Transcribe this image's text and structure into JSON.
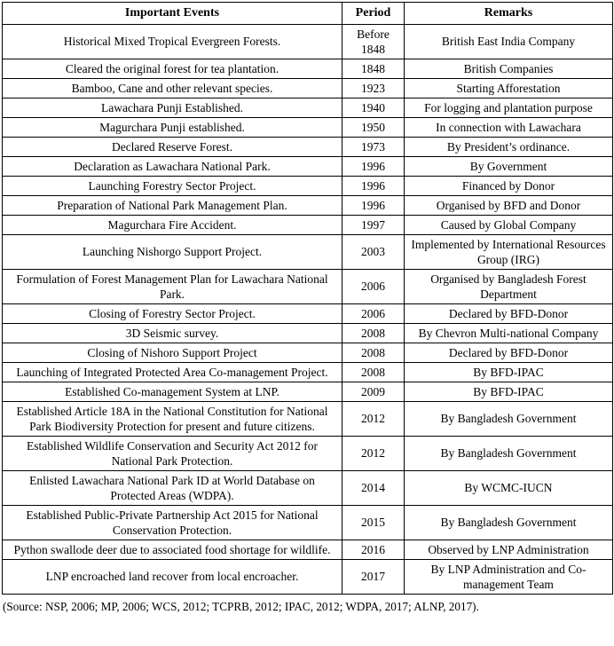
{
  "table": {
    "headers": [
      "Important Events",
      "Period",
      "Remarks"
    ],
    "rows": [
      {
        "event": "Historical Mixed Tropical Evergreen Forests.",
        "period": "Before 1848",
        "remarks": "British East India Company"
      },
      {
        "event": "Cleared the original forest for tea plantation.",
        "period": "1848",
        "remarks": "British Companies"
      },
      {
        "event": "Bamboo, Cane and other relevant species.",
        "period": "1923",
        "remarks": "Starting Afforestation"
      },
      {
        "event": "Lawachara Punji Established.",
        "period": "1940",
        "remarks": "For logging and plantation purpose"
      },
      {
        "event": "Magurchara Punji established.",
        "period": "1950",
        "remarks": "In connection with Lawachara"
      },
      {
        "event": "Declared Reserve Forest.",
        "period": "1973",
        "remarks": "By President’s ordinance."
      },
      {
        "event": "Declaration as Lawachara National Park.",
        "period": "1996",
        "remarks": "By Government"
      },
      {
        "event": "Launching Forestry Sector Project.",
        "period": "1996",
        "remarks": "Financed by Donor"
      },
      {
        "event": "Preparation of National Park Management Plan.",
        "period": "1996",
        "remarks": "Organised by BFD and Donor"
      },
      {
        "event": "Magurchara Fire Accident.",
        "period": "1997",
        "remarks": "Caused by Global Company"
      },
      {
        "event": "Launching Nishorgo Support Project.",
        "period": "2003",
        "remarks": "Implemented by International Resources Group (IRG)"
      },
      {
        "event": "Formulation of Forest Management Plan for Lawachara National Park.",
        "period": "2006",
        "remarks": "Organised by Bangladesh Forest Department"
      },
      {
        "event": "Closing of Forestry Sector Project.",
        "period": "2006",
        "remarks": "Declared by BFD-Donor"
      },
      {
        "event": "3D Seismic survey.",
        "period": "2008",
        "remarks": "By Chevron Multi-national Company"
      },
      {
        "event": "Closing of Nishoro Support Project",
        "period": "2008",
        "remarks": "Declared by BFD-Donor"
      },
      {
        "event": "Launching of Integrated Protected Area Co-management Project.",
        "period": "2008",
        "remarks": "By BFD-IPAC"
      },
      {
        "event": "Established Co-management System at LNP.",
        "period": "2009",
        "remarks": "By BFD-IPAC"
      },
      {
        "event": "Established Article 18A in the National Constitution for National Park Biodiversity Protection for present and future citizens.",
        "period": "2012",
        "remarks": "By Bangladesh Government"
      },
      {
        "event": "Established Wildlife Conservation and Security Act 2012 for National Park Protection.",
        "period": "2012",
        "remarks": "By Bangladesh Government"
      },
      {
        "event": "Enlisted Lawachara National Park ID at World Database on Protected Areas (WDPA).",
        "period": "2014",
        "remarks": "By WCMC-IUCN"
      },
      {
        "event": "Established Public-Private Partnership Act 2015 for National Conservation Protection.",
        "period": "2015",
        "remarks": "By Bangladesh Government"
      },
      {
        "event": "Python swallode deer due to associated food shortage for wildlife.",
        "period": "2016",
        "remarks": "Observed by LNP Administration"
      },
      {
        "event": "LNP encroached land recover from local encroacher.",
        "period": "2017",
        "remarks": "By LNP Administration and Co-management Team"
      }
    ]
  },
  "source_note": "(Source: NSP, 2006; MP, 2006; WCS, 2012; TCPRB, 2012; IPAC, 2012; WDPA, 2017; ALNP, 2017).",
  "colors": {
    "border": "#000000",
    "text": "#000000",
    "background": "#ffffff"
  }
}
